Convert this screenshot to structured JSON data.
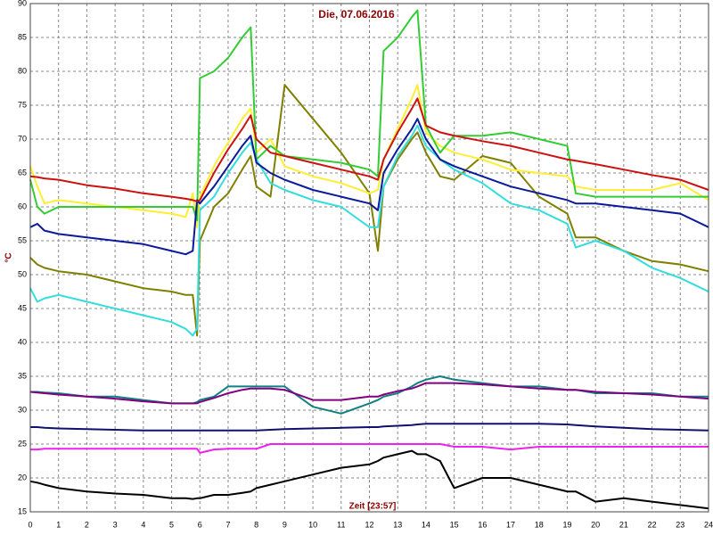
{
  "chart_data": {
    "type": "line",
    "title": "Die, 07.06.2016",
    "x_label": "Zeit [23:57]",
    "y_label": "°C",
    "grid": true,
    "xlim": [
      0,
      24
    ],
    "ylim": [
      15,
      90
    ],
    "xticks": [
      0,
      1,
      2,
      3,
      4,
      5,
      6,
      7,
      8,
      9,
      10,
      11,
      12,
      13,
      14,
      15,
      16,
      17,
      18,
      19,
      20,
      21,
      22,
      23,
      24
    ],
    "yticks": [
      15,
      20,
      25,
      30,
      35,
      40,
      45,
      50,
      55,
      60,
      65,
      70,
      75,
      80,
      85,
      90
    ],
    "x": [
      0,
      0.25,
      0.5,
      1,
      2,
      3,
      4,
      5,
      5.5,
      5.75,
      5.9,
      6,
      6.5,
      7,
      7.5,
      7.8,
      8,
      8.5,
      9,
      10,
      11,
      12,
      12.3,
      12.5,
      13,
      13.5,
      13.7,
      14,
      14.5,
      15,
      16,
      17,
      18,
      19,
      19.3,
      20,
      21,
      22,
      23,
      24
    ],
    "series": [
      {
        "color": "#808000",
        "values": [
          52.5,
          51.5,
          51,
          50.5,
          50,
          49,
          48,
          47.5,
          47,
          47,
          41,
          55,
          60,
          62,
          65.5,
          67.5,
          63,
          61.5,
          78,
          73,
          68,
          62,
          53.5,
          63,
          67,
          70,
          71,
          68,
          64.5,
          64,
          67.5,
          66.5,
          61.5,
          59,
          55.5,
          55.5,
          53.5,
          52,
          51.5,
          50.5
        ]
      },
      {
        "color": "#33dddd",
        "values": [
          48,
          46,
          46.5,
          47,
          46,
          45,
          44,
          43,
          42,
          41,
          42,
          59.5,
          61.5,
          65,
          68,
          69.5,
          67,
          63.5,
          62.5,
          61,
          60,
          57,
          57,
          63,
          67.5,
          70.5,
          72,
          69,
          67,
          65.5,
          63.5,
          60.5,
          59.5,
          57.5,
          54,
          55,
          53.5,
          51,
          49.5,
          47.5
        ]
      },
      {
        "color": "#ffee33",
        "values": [
          66,
          63,
          60.5,
          61,
          60.5,
          60,
          59.5,
          59,
          58.5,
          62,
          57,
          61.5,
          66,
          69.5,
          73,
          74.5,
          68,
          70,
          66,
          64.5,
          63.5,
          62,
          62.5,
          67,
          71.5,
          76,
          78,
          71,
          69,
          68,
          67,
          65.5,
          65,
          64.5,
          63,
          62.5,
          62.5,
          62.5,
          63.5,
          61
        ]
      },
      {
        "color": "#33cc33",
        "values": [
          64,
          60,
          59,
          60,
          60,
          60,
          60,
          60,
          60,
          60,
          58,
          79,
          80,
          82,
          85,
          86.5,
          67,
          69,
          67.5,
          67,
          66.5,
          65.5,
          64.5,
          83,
          85,
          88,
          89,
          72,
          68,
          70.5,
          70.5,
          71,
          70,
          69,
          62,
          61.5,
          61.5,
          61.5,
          61.5,
          61.5
        ]
      },
      {
        "color": "#0a1a9a",
        "values": [
          57,
          57.5,
          56.5,
          56,
          55.5,
          55,
          54.5,
          53.5,
          53,
          53.5,
          61,
          60.5,
          63,
          66,
          69,
          70.5,
          66.5,
          65,
          64,
          62.5,
          61.5,
          60.5,
          59.5,
          65,
          68.5,
          71.5,
          73,
          70,
          67,
          66,
          64.5,
          63,
          62,
          61,
          60.5,
          60.5,
          60,
          59.5,
          59,
          57
        ]
      },
      {
        "color": "#cc1111",
        "values": [
          64.5,
          64.4,
          64.2,
          64,
          63.2,
          62.7,
          62,
          61.5,
          61.2,
          61,
          60.8,
          61,
          65,
          68.5,
          71.5,
          73.5,
          70,
          68,
          67.5,
          66.5,
          65.5,
          64.5,
          64,
          67,
          71,
          74.5,
          76,
          72,
          71,
          70.5,
          69.7,
          69,
          68,
          67,
          66.8,
          66.3,
          65.5,
          64.7,
          64,
          62.5
        ]
      },
      {
        "color": "#118080",
        "values": [
          32.7,
          32.7,
          32.6,
          32.5,
          32,
          32,
          31.5,
          31,
          31,
          31,
          31.2,
          31.5,
          32,
          33.5,
          33.5,
          33.5,
          33.5,
          33.5,
          33.5,
          30.5,
          29.5,
          31,
          31.5,
          32,
          32.5,
          33.5,
          34,
          34.5,
          35,
          34.5,
          34,
          33.5,
          33.5,
          33,
          33,
          32.5,
          32.5,
          32.5,
          32,
          32
        ]
      },
      {
        "color": "#800080",
        "values": [
          32.7,
          32.6,
          32.5,
          32.3,
          32,
          31.7,
          31.3,
          31,
          31,
          31,
          31,
          31.2,
          31.8,
          32.5,
          33,
          33.2,
          33.2,
          33.2,
          33,
          31.5,
          31.5,
          32,
          32,
          32.3,
          32.8,
          33.2,
          33.5,
          34,
          34,
          34,
          33.8,
          33.5,
          33.2,
          33,
          33,
          32.7,
          32.5,
          32.3,
          32,
          31.7
        ]
      },
      {
        "color": "#101070",
        "values": [
          27.5,
          27.5,
          27.4,
          27.3,
          27.2,
          27.1,
          27,
          27,
          27,
          27,
          27,
          27,
          27,
          27,
          27,
          27,
          27,
          27.1,
          27.2,
          27.3,
          27.4,
          27.5,
          27.5,
          27.6,
          27.7,
          27.8,
          27.9,
          28,
          28,
          28,
          28,
          28,
          28,
          27.9,
          27.8,
          27.6,
          27.4,
          27.2,
          27.1,
          27
        ]
      },
      {
        "color": "#ee22ee",
        "values": [
          24.2,
          24.2,
          24.3,
          24.3,
          24.3,
          24.3,
          24.3,
          24.3,
          24.3,
          24.3,
          24.3,
          23.7,
          24.2,
          24.3,
          24.3,
          24.3,
          24.3,
          25,
          25,
          25,
          25,
          25,
          25,
          25,
          25,
          25,
          25,
          25,
          25,
          24.6,
          24.6,
          24.2,
          24.6,
          24.6,
          24.6,
          24.6,
          24.6,
          24.6,
          24.6,
          24.6
        ]
      },
      {
        "color": "#000000",
        "values": [
          19.5,
          19.3,
          19,
          18.5,
          18,
          17.7,
          17.5,
          17,
          17,
          16.9,
          17,
          17,
          17.5,
          17.5,
          17.8,
          18,
          18.5,
          19,
          19.5,
          20.5,
          21.5,
          22,
          22.5,
          23,
          23.5,
          24,
          23.5,
          23.5,
          22.5,
          18.5,
          20,
          20,
          19,
          18,
          18,
          16.5,
          17,
          16.5,
          16,
          15.5
        ]
      }
    ]
  }
}
